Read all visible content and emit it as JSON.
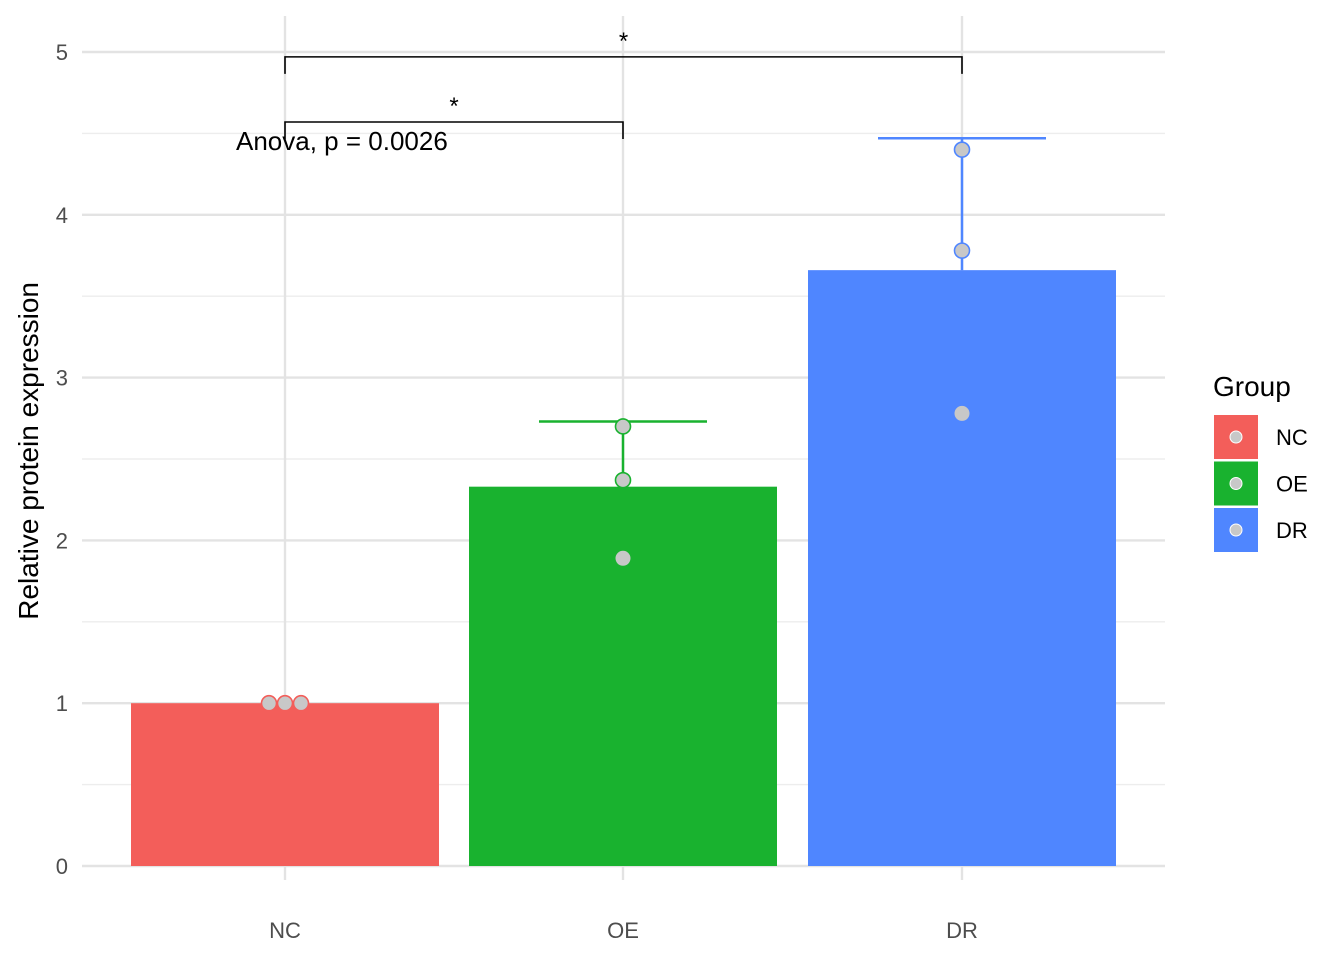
{
  "chart_data": {
    "type": "bar",
    "categories": [
      "NC",
      "OE",
      "DR"
    ],
    "values": [
      1.0,
      2.33,
      3.66
    ],
    "error_upper": [
      1.0,
      2.73,
      4.47
    ],
    "points": [
      [
        1.0,
        1.0,
        1.0
      ],
      [
        2.7,
        2.37,
        1.89
      ],
      [
        4.4,
        3.78,
        2.78
      ]
    ],
    "colors": [
      "#F35E5A",
      "#19B22F",
      "#4F86FF"
    ],
    "point_color": "#C8C8C8",
    "title": "",
    "xlabel": "",
    "ylabel": "Relative protein expression",
    "ylim": [
      0,
      5.2
    ],
    "yticks": [
      0,
      1,
      2,
      3,
      4,
      5
    ],
    "grid": true,
    "legend": {
      "title": "Group",
      "position": "right",
      "items": [
        "NC",
        "OE",
        "DR"
      ]
    },
    "annotations": {
      "test_label": "Anova, p = 0.0026",
      "brackets": [
        {
          "from": "NC",
          "to": "OE",
          "y": 4.57,
          "label": "*"
        },
        {
          "from": "NC",
          "to": "DR",
          "y": 4.97,
          "label": "*"
        }
      ]
    }
  }
}
